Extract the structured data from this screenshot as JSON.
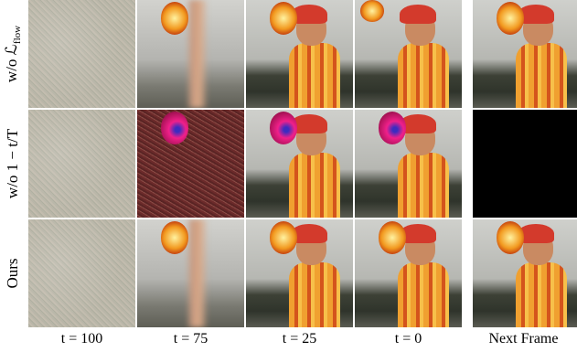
{
  "rows": [
    {
      "label": "w/o ℒ",
      "subscript": "flow"
    },
    {
      "label": "w/o 1 − t/T"
    },
    {
      "label": "Ours"
    }
  ],
  "columns": [
    {
      "label": "t = 100"
    },
    {
      "label": "t = 75"
    },
    {
      "label": "t = 25"
    },
    {
      "label": "t = 0"
    },
    {
      "label": "Next Frame"
    }
  ]
}
